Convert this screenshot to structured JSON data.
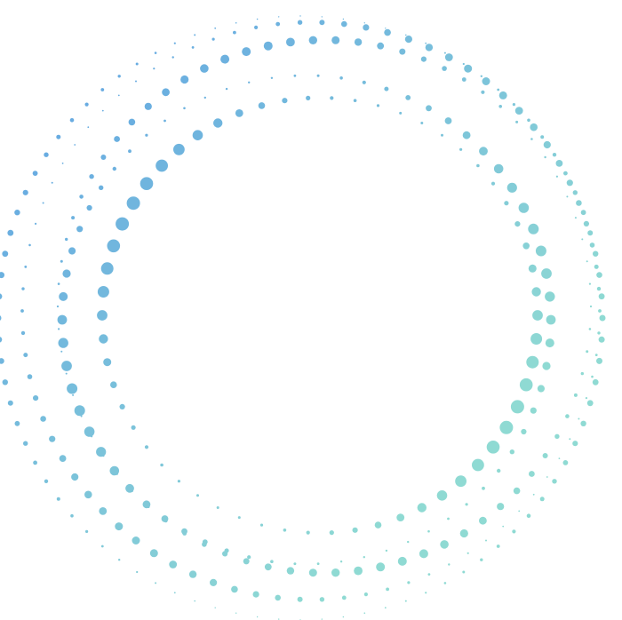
{
  "graphic": {
    "description_colors": {
      "start": "#5a9be6",
      "end": "#8fdad3"
    },
    "background": "#ffffff"
  }
}
